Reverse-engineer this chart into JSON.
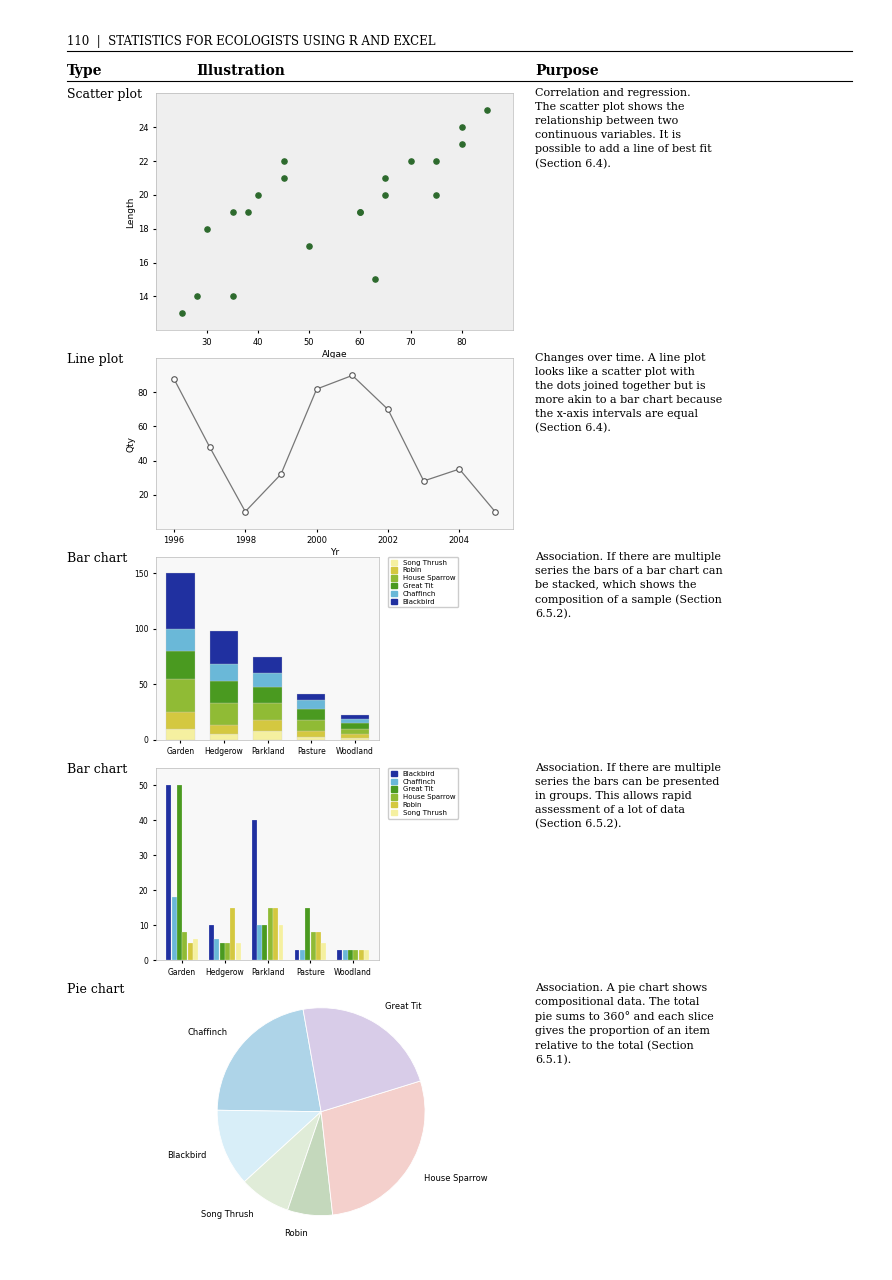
{
  "page_header": "110  |  STATISTICS FOR ECOLOGISTS USING R AND EXCEL",
  "rows": [
    {
      "type": "Scatter plot",
      "purpose": "Correlation and regression.\nThe scatter plot shows the\nrelationship between two\ncontinuous variables. It is\npossible to add a line of best fit\n(Section 6.4)."
    },
    {
      "type": "Line plot",
      "purpose": "Changes over time. A line plot\nlooks like a scatter plot with\nthe dots joined together but is\nmore akin to a bar chart because\nthe x-axis intervals are equal\n(Section 6.4)."
    },
    {
      "type": "Bar chart",
      "purpose": "Association. If there are multiple\nseries the bars of a bar chart can\nbe stacked, which shows the\ncomposition of a sample (Section\n6.5.2)."
    },
    {
      "type": "Bar chart",
      "purpose": "Association. If there are multiple\nseries the bars can be presented\nin groups. This allows rapid\nassessment of a lot of data\n(Section 6.5.2)."
    },
    {
      "type": "Pie chart",
      "purpose": "Association. A pie chart shows\ncompositional data. The total\npie sums to 360° and each slice\ngives the proportion of an item\nrelative to the total (Section\n6.5.1)."
    }
  ],
  "scatter": {
    "x": [
      25,
      28,
      30,
      35,
      35,
      38,
      40,
      45,
      45,
      50,
      60,
      60,
      63,
      65,
      65,
      70,
      75,
      75,
      80,
      80,
      85
    ],
    "y": [
      13,
      14,
      18,
      14,
      19,
      19,
      20,
      22,
      21,
      17,
      19,
      19,
      15,
      20,
      21,
      22,
      20,
      22,
      24,
      23,
      25
    ],
    "xlabel": "Algae",
    "ylabel": "Length",
    "xlim": [
      20,
      90
    ],
    "ylim": [
      12,
      26
    ],
    "xticks": [
      30,
      40,
      50,
      60,
      70,
      80
    ],
    "yticks": [
      14,
      16,
      18,
      20,
      22,
      24
    ],
    "color": "#2d6a2d"
  },
  "lineplot": {
    "x": [
      1996,
      1997,
      1998,
      1999,
      2000,
      2001,
      2002,
      2003,
      2004,
      2005
    ],
    "y": [
      88,
      48,
      10,
      32,
      82,
      90,
      70,
      28,
      35,
      10
    ],
    "xlabel": "Yr",
    "ylabel": "Qty",
    "xlim": [
      1995.5,
      2005.5
    ],
    "ylim": [
      0,
      100
    ],
    "xticks": [
      1996,
      1998,
      2000,
      2002,
      2004
    ],
    "yticks": [
      20,
      40,
      60,
      80
    ],
    "color": "#888888"
  },
  "stacked_bar": {
    "categories": [
      "Garden",
      "Hedgerow",
      "Parkland",
      "Pasture",
      "Woodland"
    ],
    "series_order": [
      "Song Thrush",
      "Robin",
      "House Sparrow",
      "Great Tit",
      "Chaffinch",
      "Blackbird"
    ],
    "series": {
      "Song Thrush": [
        10,
        5,
        8,
        3,
        2
      ],
      "Robin": [
        15,
        8,
        10,
        5,
        3
      ],
      "House Sparrow": [
        30,
        20,
        15,
        10,
        5
      ],
      "Great Tit": [
        25,
        20,
        15,
        10,
        5
      ],
      "Chaffinch": [
        20,
        15,
        12,
        8,
        4
      ],
      "Blackbird": [
        50,
        30,
        15,
        5,
        3
      ]
    },
    "colors": {
      "Song Thrush": "#f5f0a0",
      "Robin": "#d4c840",
      "House Sparrow": "#90bb35",
      "Great Tit": "#4a9a20",
      "Chaffinch": "#6ab8d8",
      "Blackbird": "#2030a0"
    },
    "yticks": [
      0,
      50,
      100,
      150
    ],
    "ylim": [
      0,
      165
    ]
  },
  "grouped_bar": {
    "categories": [
      "Garden",
      "Hedgerow",
      "Parkland",
      "Pasture",
      "Woodland"
    ],
    "series_order": [
      "Blackbird",
      "Chaffinch",
      "Great Tit",
      "House Sparrow",
      "Robin",
      "Song Thrush"
    ],
    "series": {
      "Blackbird": [
        50,
        10,
        40,
        3,
        3
      ],
      "Chaffinch": [
        18,
        6,
        10,
        3,
        3
      ],
      "Great Tit": [
        50,
        5,
        10,
        15,
        3
      ],
      "House Sparrow": [
        8,
        5,
        15,
        8,
        3
      ],
      "Robin": [
        5,
        15,
        15,
        8,
        3
      ],
      "Song Thrush": [
        6,
        5,
        10,
        5,
        3
      ]
    },
    "colors": {
      "Blackbird": "#2030a0",
      "Chaffinch": "#6ab8d8",
      "Great Tit": "#4a9a20",
      "House Sparrow": "#90bb35",
      "Robin": "#d4c840",
      "Song Thrush": "#f5f0a0"
    },
    "ylim": [
      0,
      55
    ],
    "yticks": [
      0,
      10,
      20,
      30,
      40,
      50
    ]
  },
  "pie": {
    "labels": [
      "Chaffinch",
      "Blackbird",
      "Song Thrush",
      "Robin",
      "House Sparrow",
      "Great Tit"
    ],
    "sizes": [
      22,
      12,
      8,
      7,
      28,
      23
    ],
    "colors": [
      "#aed4e8",
      "#d8eef8",
      "#e0ecd8",
      "#c4d8bc",
      "#f4d0cc",
      "#d8cce8"
    ],
    "startangle": 100
  },
  "background_color": "#ffffff"
}
